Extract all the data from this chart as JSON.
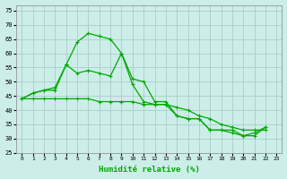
{
  "xlabel": "Humidité relative (%)",
  "bg_color": "#cceee8",
  "grid_color": "#aacccc",
  "line_color": "#00aa00",
  "xlim": [
    -0.5,
    23.5
  ],
  "ylim": [
    25,
    77
  ],
  "yticks": [
    25,
    30,
    35,
    40,
    45,
    50,
    55,
    60,
    65,
    70,
    75
  ],
  "xticks": [
    0,
    1,
    2,
    3,
    4,
    5,
    6,
    7,
    8,
    9,
    10,
    11,
    12,
    13,
    14,
    15,
    16,
    17,
    18,
    19,
    20,
    21,
    22,
    23
  ],
  "s1_x": [
    0,
    1,
    2,
    3,
    4,
    5,
    6,
    7,
    8,
    9,
    10,
    11,
    12,
    13,
    14,
    15,
    16,
    17,
    18,
    19,
    20,
    21,
    22
  ],
  "s1_y": [
    44,
    46,
    47,
    47,
    56,
    64,
    67,
    66,
    65,
    60,
    51,
    50,
    43,
    43,
    38,
    37,
    37,
    33,
    33,
    33,
    31,
    31,
    34
  ],
  "s2_x": [
    0,
    1,
    2,
    3,
    4,
    5,
    6,
    7,
    8,
    9,
    10,
    11,
    12,
    13,
    14,
    15,
    16,
    17,
    18,
    19,
    20,
    21,
    22
  ],
  "s2_y": [
    44,
    46,
    47,
    48,
    56,
    53,
    54,
    53,
    52,
    60,
    49,
    43,
    42,
    42,
    38,
    37,
    37,
    33,
    33,
    32,
    31,
    32,
    34
  ],
  "s3_x": [
    0,
    1,
    2,
    3,
    4,
    5,
    6,
    7,
    8,
    9,
    10,
    11,
    12,
    13,
    14,
    15,
    16,
    17,
    18,
    19,
    20,
    21,
    22
  ],
  "s3_y": [
    44,
    44,
    44,
    44,
    44,
    44,
    44,
    43,
    43,
    43,
    43,
    42,
    42,
    42,
    41,
    40,
    38,
    37,
    35,
    34,
    33,
    33,
    33
  ]
}
